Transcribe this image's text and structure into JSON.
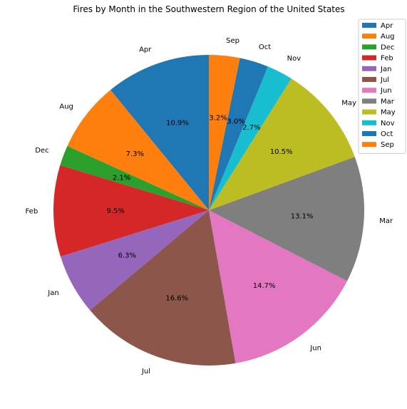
{
  "chart_data": {
    "type": "pie",
    "title": "Fires by Month in the Southwestern Region of the United States",
    "start_angle_deg": 90,
    "direction": "counterclockwise",
    "slices": [
      {
        "label": "Apr",
        "percent": 10.9,
        "pct_text": "10.9%",
        "color": "#1f77b4"
      },
      {
        "label": "Aug",
        "percent": 7.3,
        "pct_text": "7.3%",
        "color": "#ff7f0e"
      },
      {
        "label": "Dec",
        "percent": 2.1,
        "pct_text": "2.1%",
        "color": "#2ca02c"
      },
      {
        "label": "Feb",
        "percent": 9.5,
        "pct_text": "9.5%",
        "color": "#d62728"
      },
      {
        "label": "Jan",
        "percent": 6.3,
        "pct_text": "6.3%",
        "color": "#9467bd"
      },
      {
        "label": "Jul",
        "percent": 16.6,
        "pct_text": "16.6%",
        "color": "#8c564b"
      },
      {
        "label": "Jun",
        "percent": 14.7,
        "pct_text": "14.7%",
        "color": "#e377c2"
      },
      {
        "label": "Mar",
        "percent": 13.1,
        "pct_text": "13.1%",
        "color": "#7f7f7f"
      },
      {
        "label": "May",
        "percent": 10.5,
        "pct_text": "10.5%",
        "color": "#bcbd22"
      },
      {
        "label": "Nov",
        "percent": 2.7,
        "pct_text": "2.7%",
        "color": "#17becf"
      },
      {
        "label": "Oct",
        "percent": 3.0,
        "pct_text": "3.0%",
        "color": "#1f77b4"
      },
      {
        "label": "Sep",
        "percent": 3.2,
        "pct_text": "3.2%",
        "color": "#ff7f0e"
      }
    ],
    "legend_position": "upper right",
    "legend": [
      "Apr",
      "Aug",
      "Dec",
      "Feb",
      "Jan",
      "Jul",
      "Jun",
      "Mar",
      "May",
      "Nov",
      "Oct",
      "Sep"
    ]
  }
}
